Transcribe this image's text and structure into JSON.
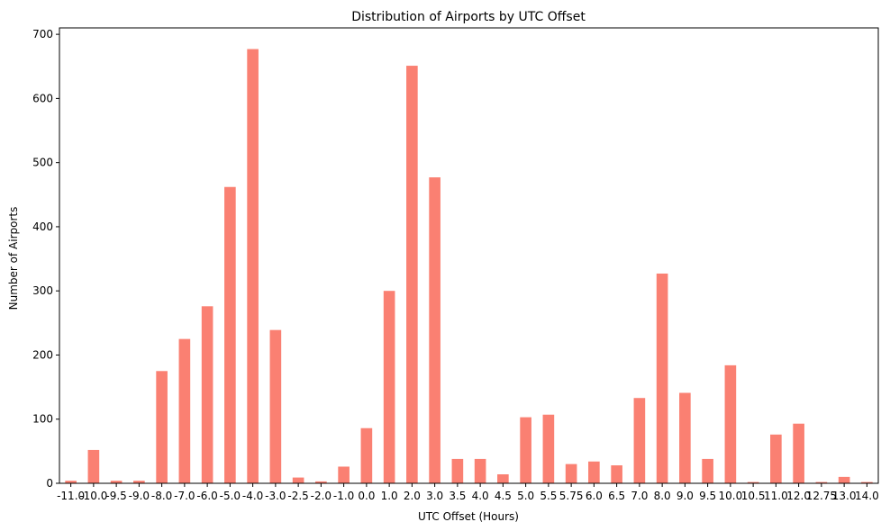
{
  "chart_data": {
    "type": "bar",
    "title": "Distribution of Airports by UTC Offset",
    "xlabel": "UTC Offset (Hours)",
    "ylabel": "Number of Airports",
    "categories": [
      "-11.0",
      "-10.0",
      "-9.5",
      "-9.0",
      "-8.0",
      "-7.0",
      "-6.0",
      "-5.0",
      "-4.0",
      "-3.0",
      "-2.5",
      "-2.0",
      "-1.0",
      "0.0",
      "1.0",
      "2.0",
      "3.0",
      "3.5",
      "4.0",
      "4.5",
      "5.0",
      "5.5",
      "5.75",
      "6.0",
      "6.5",
      "7.0",
      "8.0",
      "9.0",
      "9.5",
      "10.0",
      "10.5",
      "11.0",
      "12.0",
      "12.75",
      "13.0",
      "14.0"
    ],
    "values": [
      4,
      52,
      4,
      4,
      175,
      225,
      276,
      462,
      677,
      239,
      9,
      3,
      26,
      86,
      300,
      651,
      477,
      38,
      38,
      14,
      103,
      107,
      30,
      34,
      28,
      133,
      327,
      141,
      38,
      184,
      2,
      76,
      93,
      2,
      10,
      2
    ],
    "ylim": [
      0,
      710
    ],
    "yticks": [
      0,
      100,
      200,
      300,
      400,
      500,
      600,
      700
    ],
    "bar_color": "#fa8072",
    "grid": false,
    "legend": "none"
  }
}
